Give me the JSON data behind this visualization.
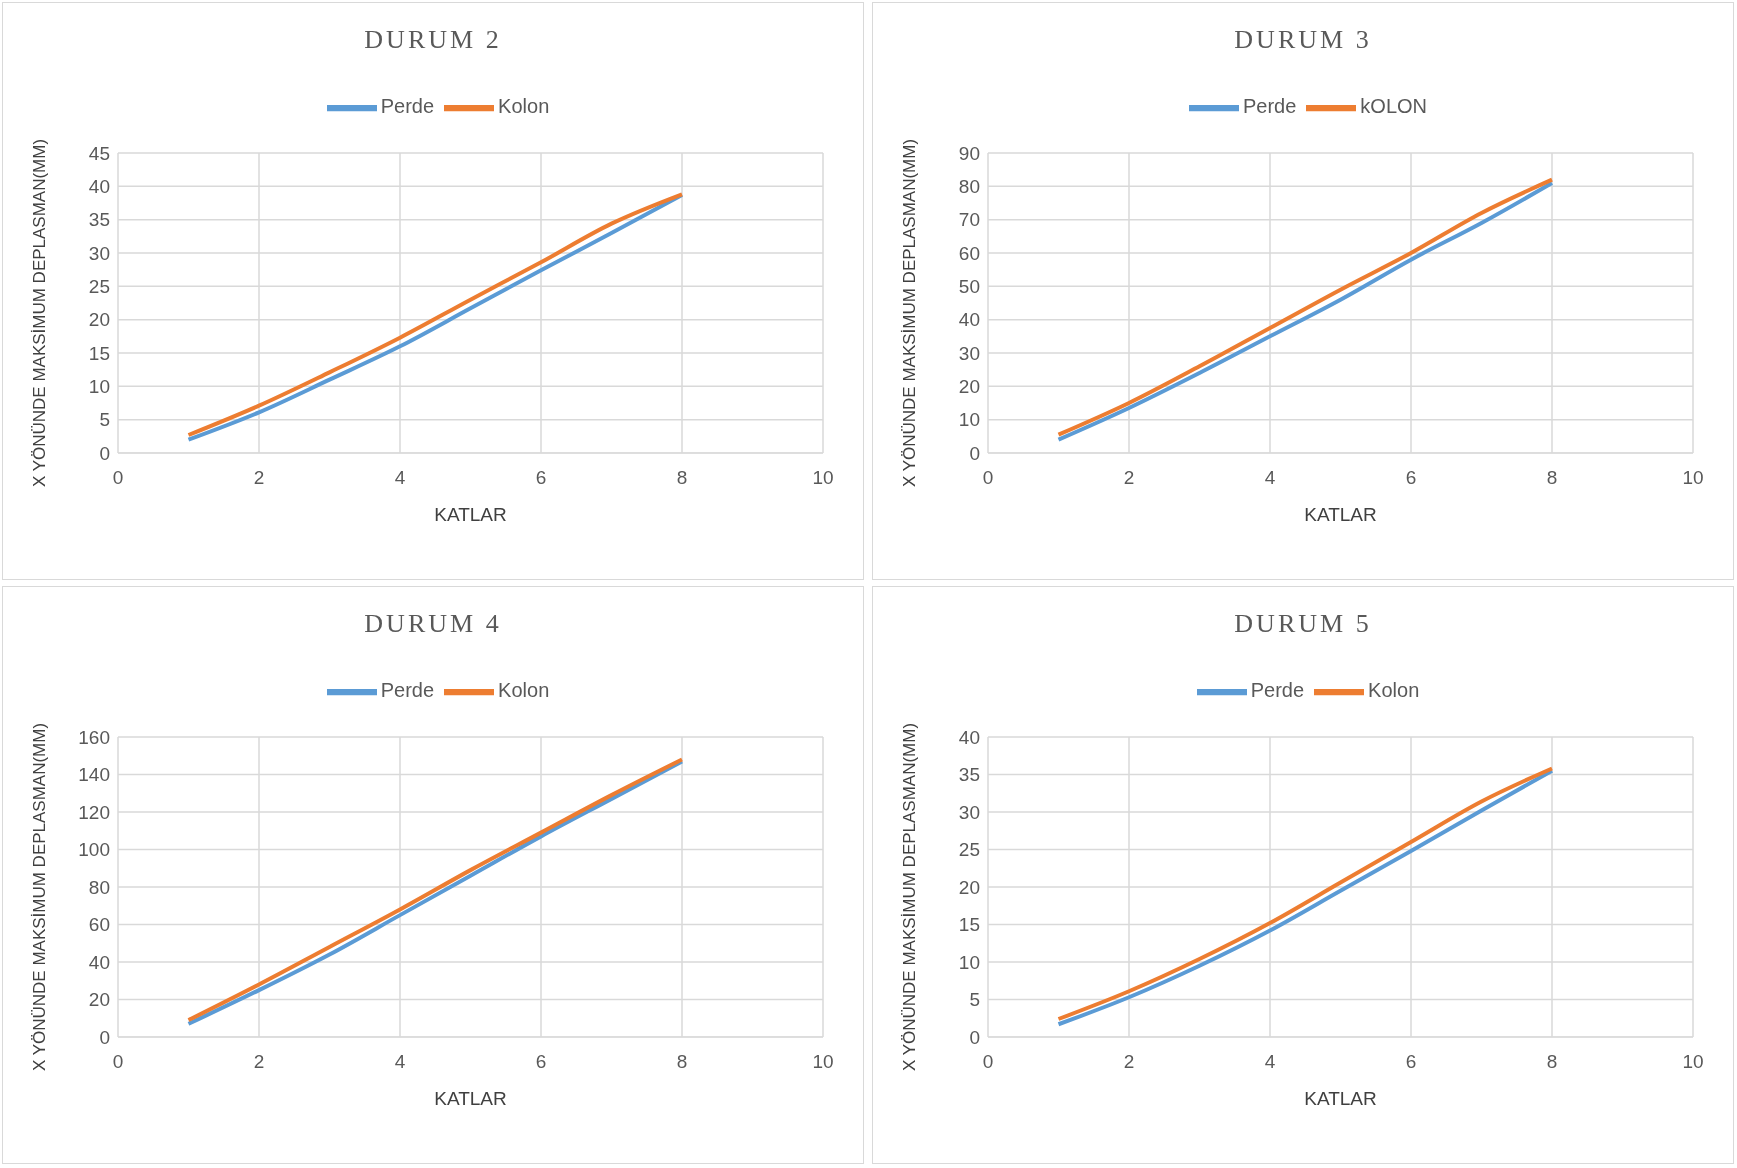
{
  "chart_data": [
    {
      "type": "line",
      "title": "DURUM 2",
      "xlabel": "KATLAR",
      "ylabel": "X YÖNÜNDE MAKSİMUM DEPLASMAN(MM)",
      "x": [
        1,
        2,
        3,
        4,
        5,
        6,
        7,
        8
      ],
      "series": [
        {
          "name": "Perde",
          "color": "#5b9bd5",
          "values": [
            2.0,
            6.1,
            11.0,
            16.0,
            21.7,
            27.4,
            33.0,
            38.7
          ]
        },
        {
          "name": "Kolon",
          "color": "#ed7d31",
          "values": [
            2.7,
            7.1,
            12.1,
            17.3,
            23.0,
            28.6,
            34.4,
            38.8
          ]
        }
      ],
      "xlim": [
        0,
        10
      ],
      "xticks": [
        0,
        2,
        4,
        6,
        8,
        10
      ],
      "ylim": [
        0,
        45
      ],
      "yticks": [
        0,
        5,
        10,
        15,
        20,
        25,
        30,
        35,
        40,
        45
      ],
      "grid": true,
      "legend": "top",
      "marker": "none"
    },
    {
      "type": "line",
      "title": "DURUM 3",
      "xlabel": "KATLAR",
      "ylabel": "X YÖNÜNDE MAKSİMUM DEPLASMAN(MM)",
      "x": [
        1,
        2,
        3,
        4,
        5,
        6,
        7,
        8
      ],
      "series": [
        {
          "name": "Perde",
          "color": "#5b9bd5",
          "values": [
            4.0,
            13.5,
            24,
            35,
            46,
            58,
            69,
            81
          ]
        },
        {
          "name": "kOLON",
          "color": "#ed7d31",
          "values": [
            5.5,
            15,
            26,
            37.5,
            49,
            60,
            72,
            82
          ]
        }
      ],
      "xlim": [
        0,
        10
      ],
      "xticks": [
        0,
        2,
        4,
        6,
        8,
        10
      ],
      "ylim": [
        0,
        90
      ],
      "yticks": [
        0,
        10,
        20,
        30,
        40,
        50,
        60,
        70,
        80,
        90
      ],
      "grid": true,
      "legend": "top",
      "marker": "none"
    },
    {
      "type": "line",
      "title": "DURUM 4",
      "xlabel": "KATLAR",
      "ylabel": "X YÖNÜNDE MAKSİMUM DEPLASMAN(MM)",
      "x": [
        1,
        2,
        3,
        4,
        5,
        6,
        7,
        8
      ],
      "series": [
        {
          "name": "Perde",
          "color": "#5b9bd5",
          "values": [
            7,
            25,
            44,
            65,
            86,
            107,
            127,
            147
          ]
        },
        {
          "name": "Kolon",
          "color": "#ed7d31",
          "values": [
            9,
            28,
            48,
            68,
            89,
            109,
            129,
            148
          ]
        }
      ],
      "xlim": [
        0,
        10
      ],
      "xticks": [
        0,
        2,
        4,
        6,
        8,
        10
      ],
      "ylim": [
        0,
        160
      ],
      "yticks": [
        0,
        20,
        40,
        60,
        80,
        100,
        120,
        140,
        160
      ],
      "grid": true,
      "legend": "top",
      "marker": "none"
    },
    {
      "type": "line",
      "title": "DURUM 5",
      "xlabel": "KATLAR",
      "ylabel": "X YÖNÜNDE MAKSİMUM DEPLASMAN(MM)",
      "x": [
        1,
        2,
        3,
        4,
        5,
        6,
        7,
        8
      ],
      "series": [
        {
          "name": "Perde",
          "color": "#5b9bd5",
          "values": [
            1.7,
            5.3,
            9.5,
            14.2,
            19.5,
            24.8,
            30.2,
            35.5
          ]
        },
        {
          "name": "Kolon",
          "color": "#ed7d31",
          "values": [
            2.4,
            6.1,
            10.4,
            15.2,
            20.6,
            26.0,
            31.4,
            35.8
          ]
        }
      ],
      "xlim": [
        0,
        10
      ],
      "xticks": [
        0,
        2,
        4,
        6,
        8,
        10
      ],
      "ylim": [
        0,
        40
      ],
      "yticks": [
        0,
        5,
        10,
        15,
        20,
        25,
        30,
        35,
        40
      ],
      "grid": true,
      "legend": "top",
      "marker": "none"
    }
  ]
}
